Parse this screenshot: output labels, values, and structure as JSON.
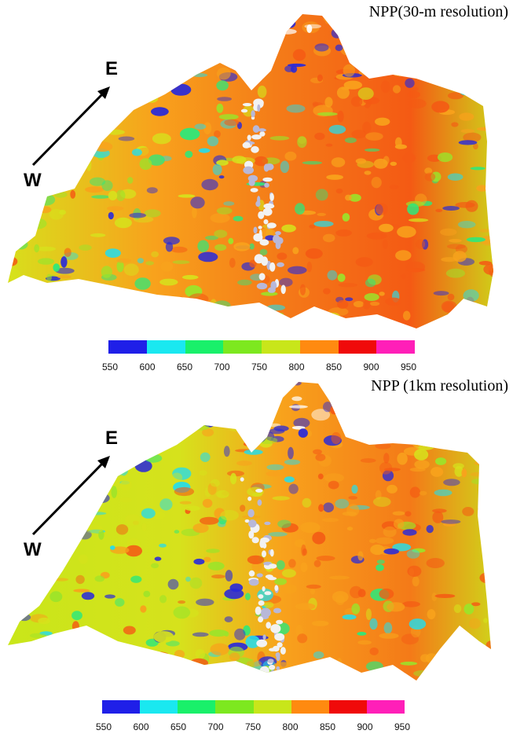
{
  "panels": [
    {
      "title": "NPP(30-m resolution)",
      "compass": {
        "west_label": "W",
        "east_label": "E"
      },
      "legend": {
        "ticks": [
          "550",
          "600",
          "650",
          "700",
          "750",
          "800",
          "850",
          "900",
          "950"
        ],
        "colors": [
          "#1f1fe8",
          "#1ae8f0",
          "#19f06a",
          "#7de81f",
          "#c8e61a",
          "#ff8a10",
          "#f00a0a",
          "#ff1fb8"
        ]
      },
      "terrain_palette": [
        "#2a2ad8",
        "#27dce8",
        "#2ee87a",
        "#9be42a",
        "#d6e21c",
        "#f8a21c",
        "#f45a14",
        "#ffffff"
      ]
    },
    {
      "title": "NPP (1km resolution)",
      "compass": {
        "west_label": "W",
        "east_label": "E"
      },
      "legend": {
        "ticks": [
          "550",
          "600",
          "650",
          "700",
          "750",
          "800",
          "850",
          "900",
          "950"
        ],
        "colors": [
          "#1f1fe8",
          "#1ae8f0",
          "#19f06a",
          "#7de81f",
          "#c8e61a",
          "#ff8a10",
          "#f00a0a",
          "#ff1fb8"
        ]
      },
      "terrain_palette": [
        "#2a2ad8",
        "#27dce8",
        "#2ee87a",
        "#9be42a",
        "#d6e21c",
        "#f8a21c",
        "#f45a14",
        "#ffffff"
      ]
    }
  ]
}
